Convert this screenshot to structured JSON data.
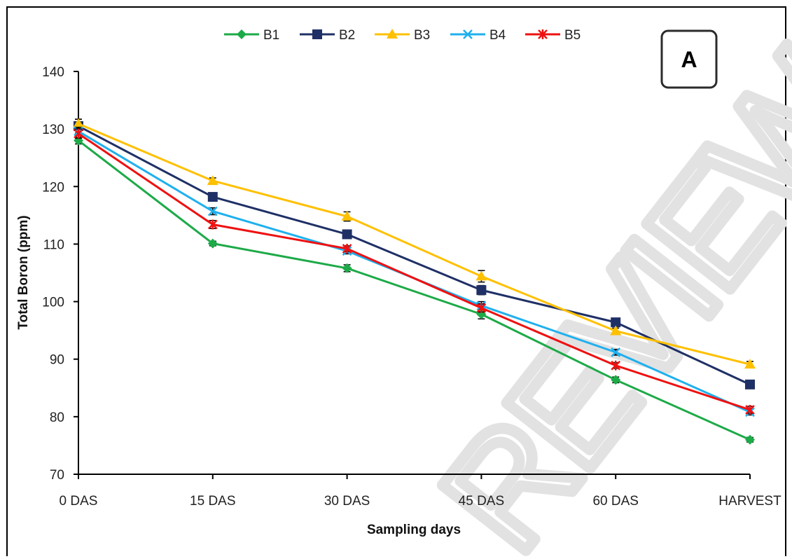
{
  "chart_data": {
    "type": "line",
    "panel_label": "A",
    "xlabel": "Sampling days",
    "ylabel": "Total Boron (ppm)",
    "categories": [
      "0 DAS",
      "15 DAS",
      "30 DAS",
      "45 DAS",
      "60 DAS",
      "HARVEST"
    ],
    "ylim": [
      70,
      140
    ],
    "yticks": [
      70,
      80,
      90,
      100,
      110,
      120,
      130,
      140
    ],
    "grid": false,
    "legend_position": "top",
    "watermark": "REVIEW",
    "series": [
      {
        "name": "B1",
        "color": "#1daa48",
        "marker": "diamond",
        "values": [
          128.0,
          110.1,
          105.8,
          97.8,
          86.4,
          76.0
        ],
        "errors": [
          0.6,
          0.4,
          0.6,
          0.8,
          0.5,
          0.4
        ]
      },
      {
        "name": "B2",
        "color": "#1f3066",
        "marker": "square",
        "values": [
          130.5,
          118.2,
          111.7,
          102.0,
          96.4,
          85.6
        ],
        "errors": [
          1.2,
          0.6,
          0.6,
          0.8,
          0.6,
          0.5
        ]
      },
      {
        "name": "B3",
        "color": "#ffc000",
        "marker": "triangle",
        "values": [
          130.9,
          121.0,
          114.8,
          104.4,
          94.9,
          89.1
        ],
        "errors": [
          0.8,
          0.5,
          0.8,
          1.0,
          0.5,
          0.5
        ]
      },
      {
        "name": "B4",
        "color": "#1fb0ee",
        "marker": "x",
        "values": [
          129.6,
          115.7,
          108.8,
          99.3,
          91.2,
          80.8
        ],
        "errors": [
          0.7,
          0.6,
          0.5,
          0.7,
          0.5,
          0.5
        ]
      },
      {
        "name": "B5",
        "color": "#ee1111",
        "marker": "star",
        "values": [
          129.2,
          113.4,
          109.2,
          98.9,
          88.9,
          81.2
        ],
        "errors": [
          0.8,
          0.7,
          0.5,
          0.7,
          0.5,
          0.6
        ]
      }
    ]
  }
}
